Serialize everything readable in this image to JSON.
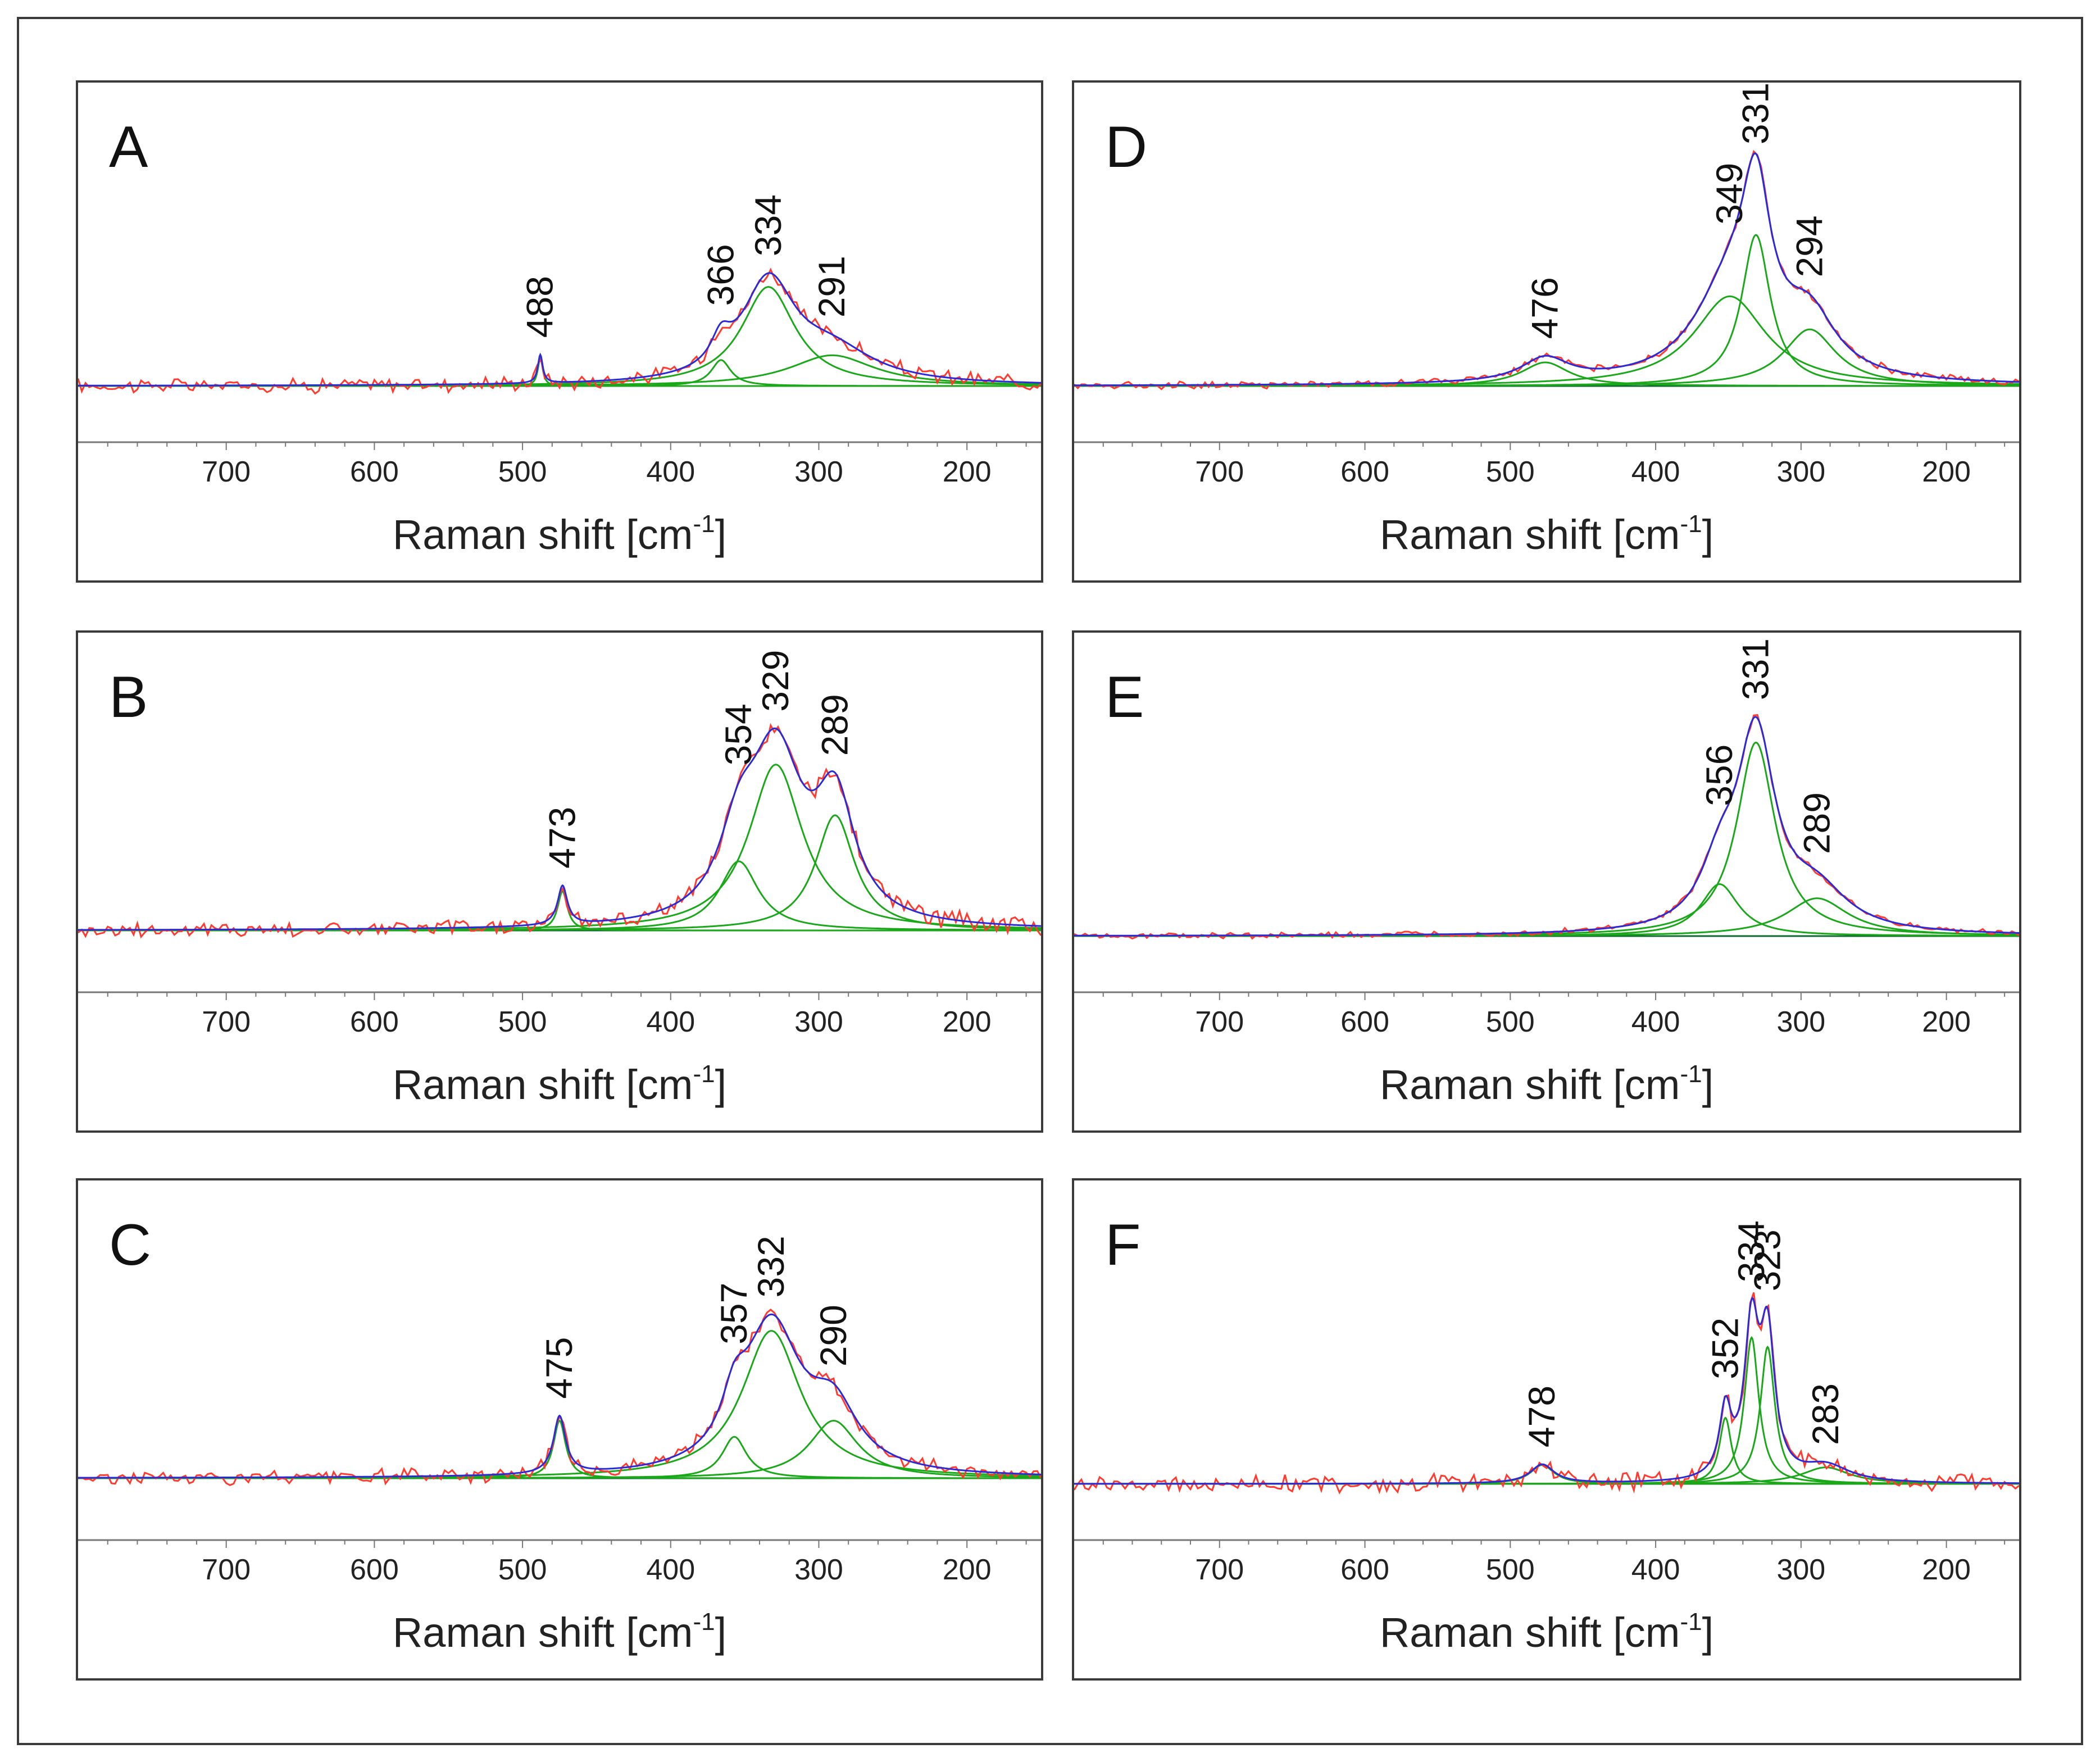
{
  "colors": {
    "raw_spectrum": "#ff3b30",
    "fit_envelope": "#2a2ad6",
    "component": "#1aa81a",
    "baseline": "#0c6b2e",
    "frame": "#3a3a3a"
  },
  "chart_data": [
    {
      "panel": "A",
      "type": "line",
      "series_names": [
        "measured spectrum",
        "cumulative fit",
        "fitted components"
      ],
      "xlabel_main": "Raman shift [cm",
      "xlabel_sup": "-1",
      "xlabel_close": "]",
      "xlim": [
        800,
        150
      ],
      "ylim": [
        -0.06,
        1.0
      ],
      "x_ticks": [
        700,
        600,
        500,
        400,
        300,
        200
      ],
      "x_tick_labels": [
        "700",
        "600",
        "500",
        "400",
        "300",
        "200"
      ],
      "noise": 0.025,
      "peaks": [
        {
          "label": "488",
          "center": 488,
          "height": 0.12,
          "width": 2
        },
        {
          "label": "366",
          "center": 366,
          "height": 0.11,
          "width": 8
        },
        {
          "label": "334",
          "center": 334,
          "height": 0.42,
          "width": 22
        },
        {
          "label": "291",
          "center": 291,
          "height": 0.13,
          "width": 35
        }
      ]
    },
    {
      "panel": "B",
      "type": "line",
      "series_names": [
        "measured spectrum",
        "cumulative fit",
        "fitted components"
      ],
      "xlabel_main": "Raman shift [cm",
      "xlabel_sup": "-1",
      "xlabel_close": "]",
      "xlim": [
        800,
        150
      ],
      "ylim": [
        -0.1,
        1.0
      ],
      "x_ticks": [
        700,
        600,
        500,
        400,
        300,
        200
      ],
      "x_tick_labels": [
        "700",
        "600",
        "500",
        "400",
        "300",
        "200"
      ],
      "noise": 0.03,
      "peaks": [
        {
          "label": "473",
          "center": 473,
          "height": 0.17,
          "width": 4
        },
        {
          "label": "354",
          "center": 354,
          "height": 0.3,
          "width": 16
        },
        {
          "label": "329",
          "center": 329,
          "height": 0.72,
          "width": 22
        },
        {
          "label": "289",
          "center": 289,
          "height": 0.5,
          "width": 16
        }
      ]
    },
    {
      "panel": "C",
      "type": "line",
      "series_names": [
        "measured spectrum",
        "cumulative fit",
        "fitted components"
      ],
      "xlabel_main": "Raman shift [cm",
      "xlabel_sup": "-1",
      "xlabel_close": "]",
      "xlim": [
        800,
        150
      ],
      "ylim": [
        -0.1,
        1.0
      ],
      "x_ticks": [
        700,
        600,
        500,
        400,
        300,
        200
      ],
      "x_tick_labels": [
        "700",
        "600",
        "500",
        "400",
        "300",
        "200"
      ],
      "noise": 0.025,
      "peaks": [
        {
          "label": "475",
          "center": 475,
          "height": 0.25,
          "width": 5
        },
        {
          "label": "357",
          "center": 357,
          "height": 0.18,
          "width": 10
        },
        {
          "label": "332",
          "center": 332,
          "height": 0.64,
          "width": 24
        },
        {
          "label": "290",
          "center": 290,
          "height": 0.25,
          "width": 20
        }
      ]
    },
    {
      "panel": "D",
      "type": "line",
      "series_names": [
        "measured spectrum",
        "cumulative fit",
        "fitted components"
      ],
      "xlabel_main": "Raman shift [cm",
      "xlabel_sup": "-1",
      "xlabel_close": "]",
      "xlim": [
        800,
        150
      ],
      "ylim": [
        -0.06,
        1.0
      ],
      "x_ticks": [
        700,
        600,
        500,
        400,
        300,
        200
      ],
      "x_tick_labels": [
        "700",
        "600",
        "500",
        "400",
        "300",
        "200"
      ],
      "noise": 0.012,
      "peaks": [
        {
          "label": "476",
          "center": 476,
          "height": 0.1,
          "width": 20
        },
        {
          "label": "349",
          "center": 349,
          "height": 0.38,
          "width": 30
        },
        {
          "label": "331",
          "center": 331,
          "height": 0.64,
          "width": 12
        },
        {
          "label": "294",
          "center": 294,
          "height": 0.24,
          "width": 22
        }
      ]
    },
    {
      "panel": "E",
      "type": "line",
      "series_names": [
        "measured spectrum",
        "cumulative fit",
        "fitted components"
      ],
      "xlabel_main": "Raman shift [cm",
      "xlabel_sup": "-1",
      "xlabel_close": "]",
      "xlim": [
        800,
        150
      ],
      "ylim": [
        -0.06,
        1.0
      ],
      "x_ticks": [
        700,
        600,
        500,
        400,
        300,
        200
      ],
      "x_tick_labels": [
        "700",
        "600",
        "500",
        "400",
        "300",
        "200"
      ],
      "noise": 0.01,
      "peaks": [
        {
          "label": "356",
          "center": 356,
          "height": 0.22,
          "width": 16
        },
        {
          "label": "331",
          "center": 331,
          "height": 0.82,
          "width": 16
        },
        {
          "label": "289",
          "center": 289,
          "height": 0.16,
          "width": 26
        }
      ]
    },
    {
      "panel": "F",
      "type": "line",
      "series_names": [
        "measured spectrum",
        "cumulative fit",
        "fitted components"
      ],
      "xlabel_main": "Raman shift [cm",
      "xlabel_sup": "-1",
      "xlabel_close": "]",
      "xlim": [
        800,
        150
      ],
      "ylim": [
        -0.1,
        1.0
      ],
      "x_ticks": [
        700,
        600,
        500,
        400,
        300,
        200
      ],
      "x_tick_labels": [
        "700",
        "600",
        "500",
        "400",
        "300",
        "200"
      ],
      "noise": 0.03,
      "peaks": [
        {
          "label": "478",
          "center": 478,
          "height": 0.08,
          "width": 10
        },
        {
          "label": "352",
          "center": 352,
          "height": 0.28,
          "width": 5
        },
        {
          "label": "334",
          "center": 334,
          "height": 0.62,
          "width": 6
        },
        {
          "label": "323",
          "center": 323,
          "height": 0.58,
          "width": 6
        },
        {
          "label": "283",
          "center": 283,
          "height": 0.07,
          "width": 20
        }
      ]
    }
  ]
}
